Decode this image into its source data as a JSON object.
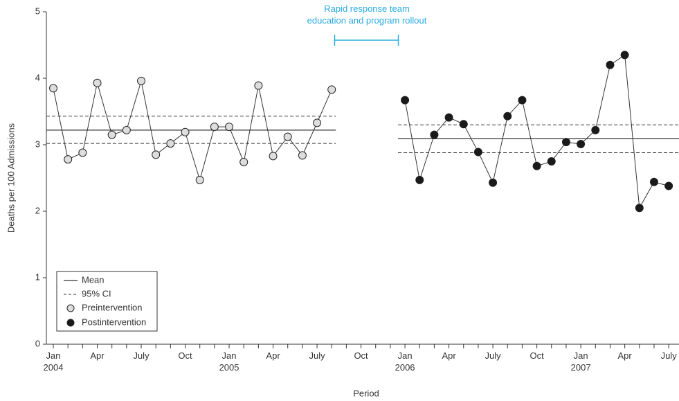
{
  "chart_data": {
    "type": "line",
    "x_label": "Period",
    "y_label": "Deaths per 100 Admissions",
    "annotation": "Rapid response team\neducation and program rollout",
    "annotation_color": "#29abe2",
    "mean_label": "Mean",
    "ci_label": "95% CI",
    "categories": [
      "Jan\n2004",
      null,
      null,
      "Apr",
      null,
      null,
      "July",
      null,
      null,
      "Oct",
      null,
      null,
      "Jan\n2005",
      null,
      null,
      "Apr",
      null,
      null,
      "July",
      null,
      null,
      "Oct",
      null,
      null,
      "Jan\n2006",
      null,
      null,
      "Apr",
      null,
      null,
      "July",
      null,
      null,
      "Oct",
      null,
      null,
      "Jan\n2007",
      null,
      null,
      "Apr",
      null,
      null,
      "July"
    ],
    "ylim": [
      0,
      5
    ],
    "yticks": [
      0,
      1,
      2,
      3,
      4,
      5
    ],
    "grid": false,
    "series": [
      {
        "name": "Preintervention",
        "color": "#dddddd",
        "mean": 3.22,
        "ci": [
          3.02,
          3.43
        ],
        "values": [
          3.85,
          2.78,
          2.88,
          3.93,
          3.15,
          3.22,
          3.96,
          2.85,
          3.02,
          3.19,
          2.47,
          3.27,
          3.27,
          2.74,
          3.89,
          2.83,
          3.12,
          2.84,
          3.33,
          3.83,
          null,
          null,
          null,
          null,
          null,
          null,
          null,
          null,
          null,
          null,
          null,
          null,
          null,
          null,
          null,
          null,
          null,
          null,
          null,
          null,
          null,
          null,
          null
        ]
      },
      {
        "name": "Postintervention",
        "color": "#1a1a1a",
        "mean": 3.09,
        "ci": [
          2.88,
          3.3
        ],
        "values": [
          null,
          null,
          null,
          null,
          null,
          null,
          null,
          null,
          null,
          null,
          null,
          null,
          null,
          null,
          null,
          null,
          null,
          null,
          null,
          null,
          null,
          null,
          null,
          null,
          3.67,
          2.47,
          3.15,
          3.41,
          3.31,
          2.89,
          2.43,
          3.43,
          3.67,
          2.68,
          2.75,
          3.04,
          3.01,
          3.22,
          4.2,
          4.35,
          2.05,
          2.44,
          2.38
        ]
      }
    ]
  }
}
